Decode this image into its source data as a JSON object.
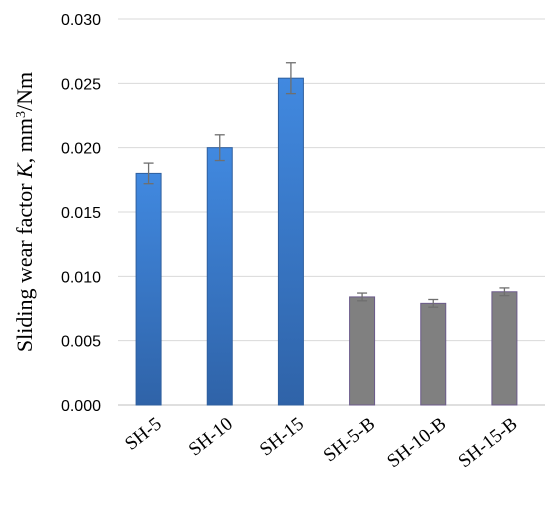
{
  "chart_data": {
    "type": "bar",
    "categories": [
      "SH-5",
      "SH-10",
      "SH-15",
      "SH-5-B",
      "SH-10-B",
      "SH-15-B"
    ],
    "values": [
      0.018,
      0.02,
      0.0254,
      0.0084,
      0.0079,
      0.0088
    ],
    "errors": [
      0.0008,
      0.001,
      0.0012,
      0.0003,
      0.0003,
      0.0003
    ],
    "title": "",
    "xlabel": "",
    "ylabel_pre": "Sliding wear factor ",
    "ylabel_var": "K",
    "ylabel_unit_a": ", mm",
    "ylabel_sup": "3",
    "ylabel_unit_b": "/Nm",
    "ylim": [
      0,
      0.03
    ],
    "yticks": [
      "0.000",
      "0.005",
      "0.010",
      "0.015",
      "0.020",
      "0.025",
      "0.030"
    ],
    "grid": true,
    "colors": [
      "#3b7dd8",
      "#3b7dd8",
      "#3b7dd8",
      "#808080",
      "#808080",
      "#808080"
    ],
    "edge_colors": [
      "#2f5f9e",
      "#2f5f9e",
      "#2f5f9e",
      "#6b5a8a",
      "#6b5a8a",
      "#6b5a8a"
    ]
  }
}
